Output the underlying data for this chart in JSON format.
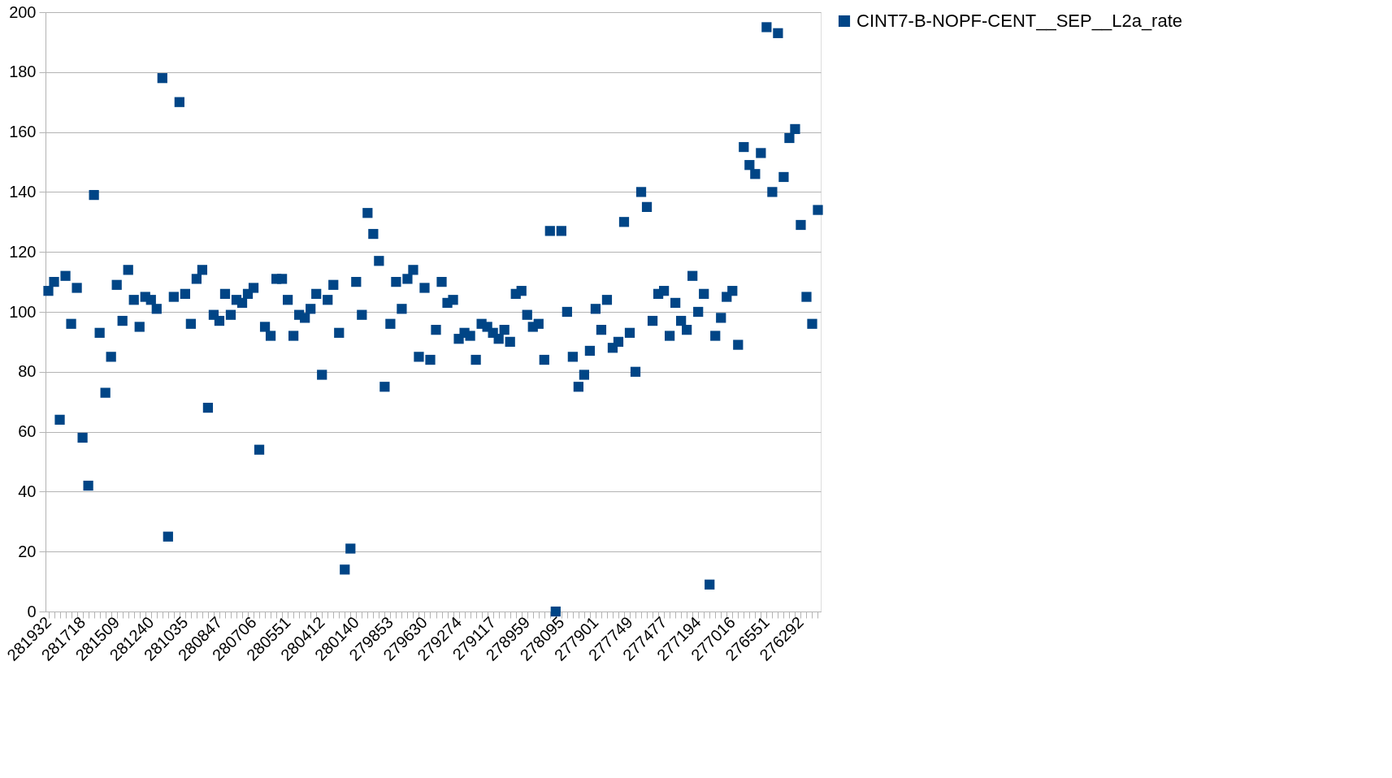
{
  "chart_data": {
    "type": "scatter",
    "categories": [
      "281932",
      null,
      null,
      null,
      null,
      null,
      "281718",
      null,
      null,
      null,
      null,
      null,
      "281509",
      null,
      null,
      null,
      null,
      null,
      "281240",
      null,
      null,
      null,
      null,
      null,
      "281035",
      null,
      null,
      null,
      null,
      null,
      "280847",
      null,
      null,
      null,
      null,
      null,
      "280706",
      null,
      null,
      null,
      null,
      null,
      "280551",
      null,
      null,
      null,
      null,
      null,
      "280412",
      null,
      null,
      null,
      null,
      null,
      "280140",
      null,
      null,
      null,
      null,
      null,
      "279853",
      null,
      null,
      null,
      null,
      null,
      "279630",
      null,
      null,
      null,
      null,
      null,
      "279274",
      null,
      null,
      null,
      null,
      null,
      "279117",
      null,
      null,
      null,
      null,
      null,
      "278959",
      null,
      null,
      null,
      null,
      null,
      "278095",
      null,
      null,
      null,
      null,
      null,
      "277901",
      null,
      null,
      null,
      null,
      null,
      "277749",
      null,
      null,
      null,
      null,
      null,
      "277477",
      null,
      null,
      null,
      null,
      null,
      "277194",
      null,
      null,
      null,
      null,
      null,
      "277016",
      null,
      null,
      null,
      null,
      null,
      "276551",
      null,
      null,
      null,
      null,
      null,
      "276292",
      null,
      null,
      null
    ],
    "series": [
      {
        "name": "CINT7-B-NOPF-CENT__SEP__L2a_rate",
        "color": "#004586",
        "values": [
          107,
          110,
          64,
          112,
          96,
          108,
          58,
          42,
          139,
          93,
          73,
          85,
          109,
          97,
          114,
          104,
          95,
          105,
          104,
          101,
          178,
          25,
          105,
          170,
          106,
          96,
          111,
          114,
          68,
          99,
          97,
          106,
          99,
          104,
          103,
          106,
          108,
          54,
          95,
          92,
          111,
          111,
          104,
          92,
          99,
          98,
          101,
          106,
          79,
          104,
          109,
          93,
          14,
          21,
          110,
          99,
          133,
          126,
          117,
          75,
          96,
          110,
          101,
          111,
          114,
          85,
          108,
          84,
          94,
          110,
          103,
          104,
          91,
          93,
          92,
          84,
          96,
          95,
          93,
          91,
          94,
          90,
          106,
          107,
          99,
          95,
          96,
          84,
          127,
          0,
          127,
          100,
          85,
          75,
          79,
          87,
          101,
          94,
          104,
          88,
          90,
          130,
          93,
          80,
          140,
          135,
          97,
          106,
          107,
          92,
          103,
          97,
          94,
          112,
          100,
          106,
          9,
          92,
          98,
          105,
          107,
          89,
          155,
          149,
          146,
          153,
          195,
          140,
          193,
          145,
          158,
          161,
          129,
          105,
          96,
          134
        ]
      }
    ],
    "ylim": [
      0,
      200
    ],
    "yticks": [
      0,
      20,
      40,
      60,
      80,
      100,
      120,
      140,
      160,
      180,
      200
    ],
    "grid": "y",
    "legend": "right",
    "marker": "square"
  }
}
